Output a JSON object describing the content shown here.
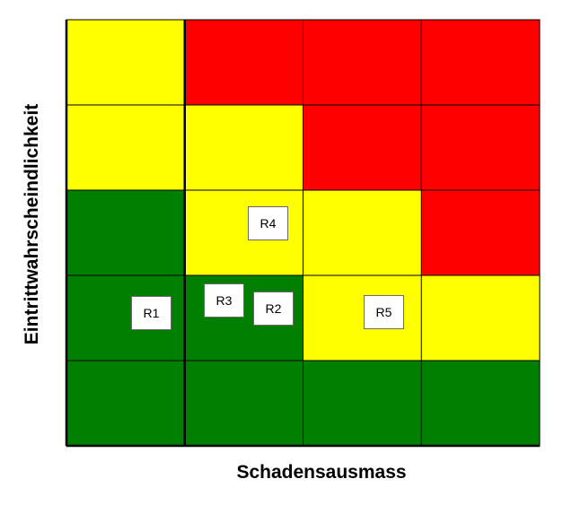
{
  "matrix": {
    "rows": 5,
    "cols": 4,
    "cells": [
      [
        "yellow",
        "red",
        "red",
        "red"
      ],
      [
        "yellow",
        "yellow",
        "red",
        "red"
      ],
      [
        "green",
        "yellow",
        "yellow",
        "red"
      ],
      [
        "green",
        "green",
        "yellow",
        "yellow"
      ],
      [
        "green",
        "green",
        "green",
        "green"
      ]
    ],
    "colors": {
      "green": "#007f00",
      "yellow": "#ffff00",
      "red": "#ff0000",
      "line": "#000000"
    }
  },
  "axes": {
    "x_label": "Schadensausmass",
    "y_label": "Eintrittwahrscheindlichkeit"
  },
  "risks": [
    {
      "label": "R1",
      "row": 4,
      "col": 1
    },
    {
      "label": "R2",
      "row": 4,
      "col": 2
    },
    {
      "label": "R3",
      "row": 4,
      "col": 2
    },
    {
      "label": "R4",
      "row": 3,
      "col": 2
    },
    {
      "label": "R5",
      "row": 4,
      "col": 3
    }
  ]
}
